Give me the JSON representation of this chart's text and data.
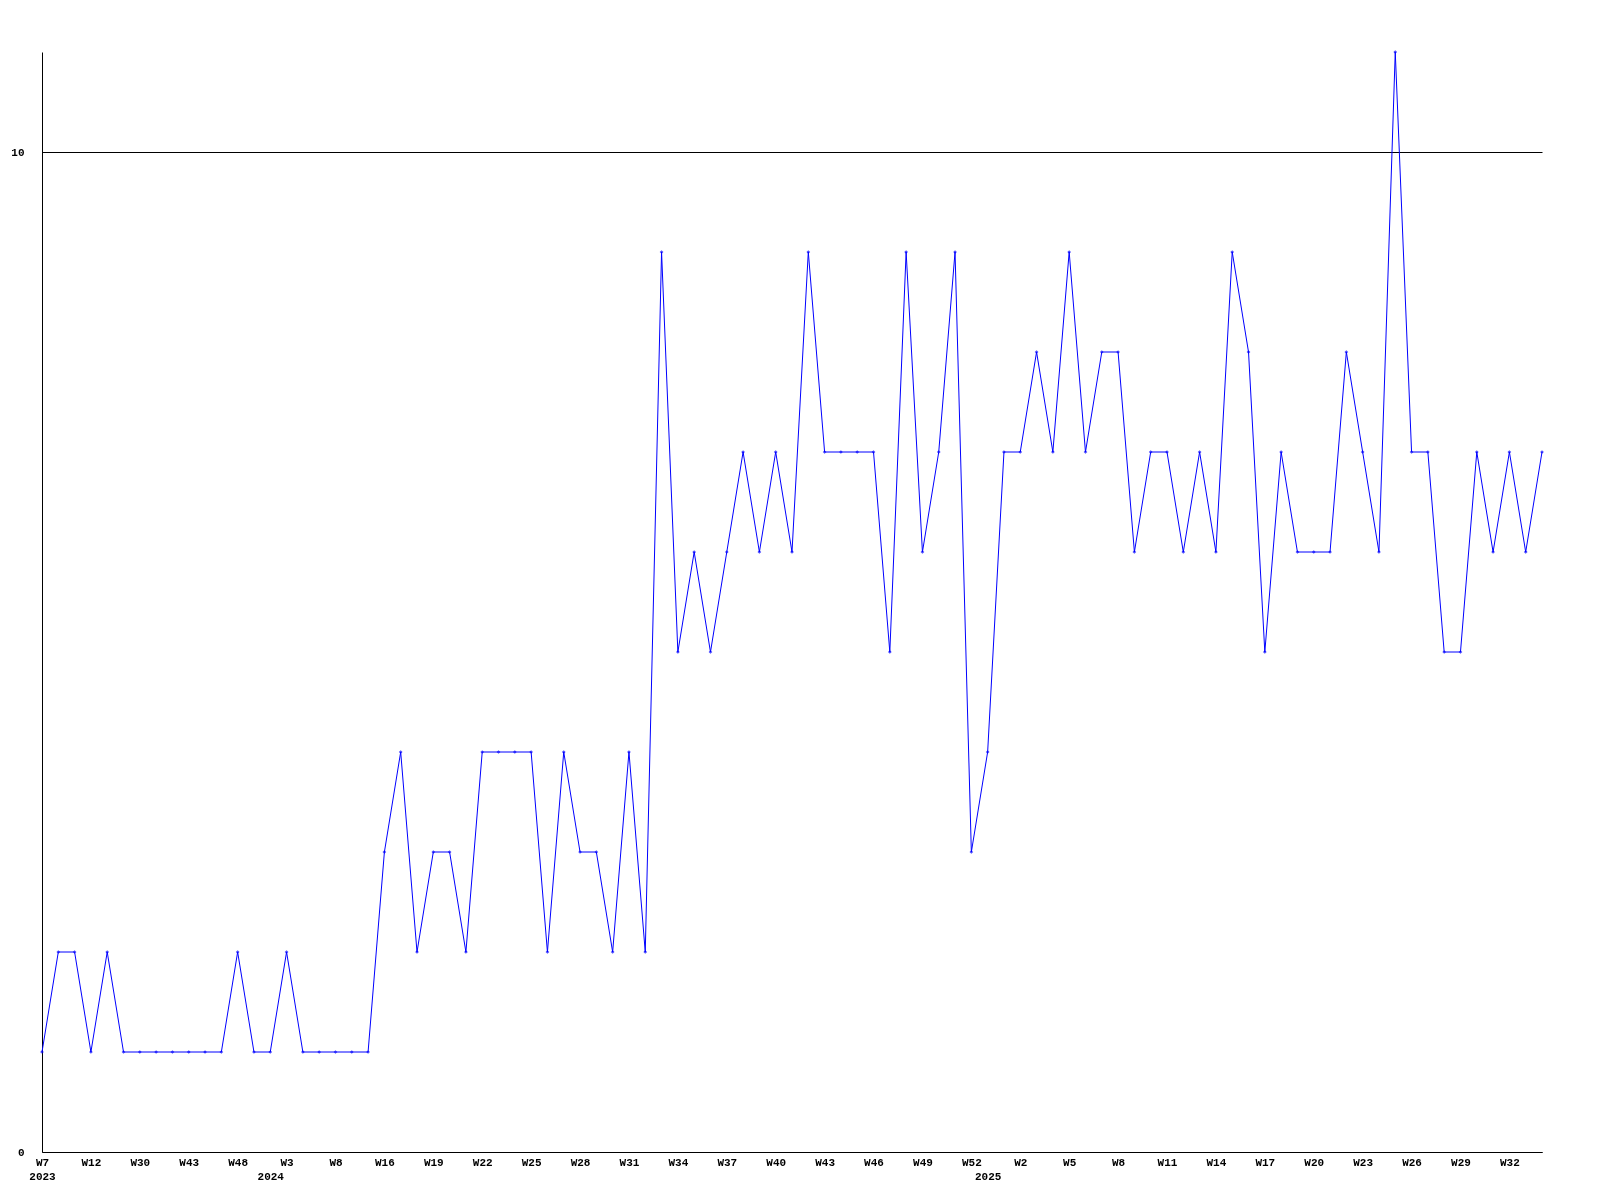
{
  "chart_data": {
    "type": "line",
    "categories": [
      "W7\n2023",
      null,
      null,
      "W12",
      null,
      null,
      "W30",
      null,
      null,
      "W43",
      null,
      null,
      "W48",
      null,
      "\n2024",
      "W3",
      null,
      null,
      "W8",
      null,
      null,
      "W16",
      null,
      null,
      "W19",
      null,
      null,
      "W22",
      null,
      null,
      "W25",
      null,
      null,
      "W28",
      null,
      null,
      "W31",
      null,
      null,
      "W34",
      null,
      null,
      "W37",
      null,
      null,
      "W40",
      null,
      null,
      "W43",
      null,
      null,
      "W46",
      null,
      null,
      "W49",
      null,
      null,
      "W52",
      "\n2025",
      null,
      "W2",
      null,
      null,
      "W5",
      null,
      null,
      "W8",
      null,
      null,
      "W11",
      null,
      null,
      "W14",
      null,
      null,
      "W17",
      null,
      null,
      "W20",
      null,
      null,
      "W23",
      null,
      null,
      "W26",
      null,
      null,
      "W29",
      null,
      null,
      "W32",
      null,
      null
    ],
    "series": [
      {
        "color": "#0000ff",
        "values": [
          1,
          2,
          2,
          1,
          2,
          1,
          1,
          1,
          1,
          1,
          1,
          1,
          2,
          1,
          1,
          2,
          1,
          1,
          1,
          1,
          1,
          3,
          4,
          2,
          3,
          3,
          2,
          4,
          4,
          4,
          4,
          2,
          4,
          3,
          3,
          2,
          4,
          2,
          9,
          5,
          6,
          5,
          6,
          7,
          6,
          7,
          6,
          9,
          7,
          7,
          7,
          7,
          5,
          9,
          6,
          7,
          9,
          3,
          4,
          7,
          7,
          8,
          7,
          9,
          7,
          8,
          8,
          6,
          7,
          7,
          6,
          7,
          6,
          9,
          8,
          5,
          7,
          6,
          6,
          6,
          8,
          7,
          6,
          11,
          7,
          7,
          5,
          5,
          7,
          6,
          7,
          6,
          7
        ]
      }
    ],
    "ylim": [
      0,
      11
    ],
    "yticks": [
      0,
      10
    ],
    "grid": "y",
    "marker": "diamond",
    "line_style": "solid",
    "legend": false
  }
}
